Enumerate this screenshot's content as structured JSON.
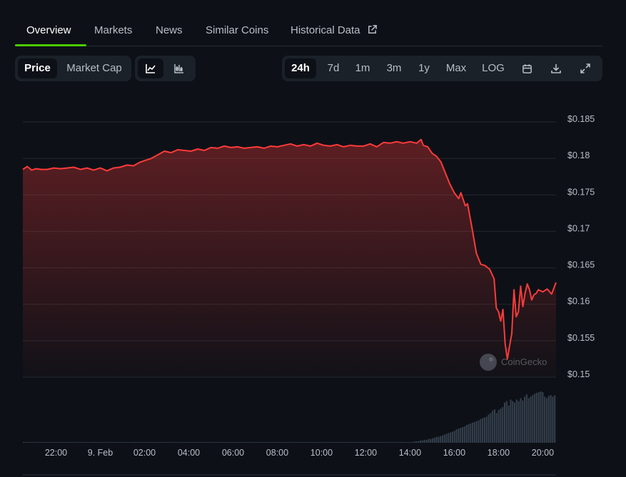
{
  "tabs": [
    {
      "label": "Overview",
      "active": true
    },
    {
      "label": "Markets"
    },
    {
      "label": "News"
    },
    {
      "label": "Similar Coins"
    },
    {
      "label": "Historical Data",
      "icon": "external-link-icon"
    }
  ],
  "metric_toggle": [
    {
      "label": "Price",
      "active": true
    },
    {
      "label": "Market Cap"
    }
  ],
  "chart_type_toggle": [
    {
      "icon": "line-chart-icon",
      "active": true
    },
    {
      "icon": "candlestick-chart-icon"
    }
  ],
  "range_toggle": [
    {
      "label": "24h",
      "active": true
    },
    {
      "label": "7d"
    },
    {
      "label": "1m"
    },
    {
      "label": "3m"
    },
    {
      "label": "1y"
    },
    {
      "label": "Max"
    },
    {
      "label": "LOG"
    }
  ],
  "tool_icons": [
    "calendar-icon",
    "download-icon",
    "expand-icon"
  ],
  "watermark": "CoinGecko",
  "colors": {
    "background": "#0d1117",
    "line": "#ff3a3a",
    "volume": "#35404d",
    "active_tab": "#4bcc00"
  },
  "chart_data": {
    "type": "line",
    "title": "",
    "xlabel": "",
    "ylabel": "",
    "ylim": [
      0.15,
      0.185
    ],
    "y_ticks": [
      "$0.185",
      "$0.18",
      "$0.175",
      "$0.17",
      "$0.165",
      "$0.16",
      "$0.155",
      "$0.15"
    ],
    "x_ticks": [
      "22:00",
      "9. Feb",
      "02:00",
      "04:00",
      "06:00",
      "08:00",
      "10:00",
      "12:00",
      "14:00",
      "16:00",
      "18:00",
      "20:00"
    ],
    "x_tick_hours": [
      22,
      24,
      26,
      28,
      30,
      32,
      34,
      36,
      38,
      40,
      42,
      44
    ],
    "x_range_hours": [
      20.5,
      44.6
    ],
    "series": [
      {
        "x_hours": [
          20.5,
          20.7,
          20.9,
          21.1,
          21.3,
          21.6,
          21.9,
          22.2,
          22.5,
          22.8,
          23.1,
          23.4,
          23.7,
          24.0,
          24.3,
          24.6,
          24.9,
          25.2,
          25.5,
          25.8,
          26.0,
          26.3,
          26.6,
          26.9,
          27.2,
          27.5,
          27.8,
          28.1,
          28.4,
          28.7,
          29.0,
          29.3,
          29.6,
          29.9,
          30.2,
          30.5,
          30.8,
          31.1,
          31.4,
          31.7,
          32.0,
          32.3,
          32.6,
          32.9,
          33.2,
          33.5,
          33.8,
          34.1,
          34.4,
          34.7,
          35.0,
          35.3,
          35.6,
          35.9,
          36.2,
          36.5,
          36.8,
          37.1,
          37.4,
          37.7,
          38.0,
          38.3,
          38.5,
          38.6,
          38.8,
          39.0,
          39.2,
          39.4,
          39.6,
          39.8,
          40.0,
          40.2,
          40.3,
          40.5,
          40.6,
          40.8,
          41.0,
          41.2,
          41.4,
          41.6,
          41.8,
          41.9,
          42.0,
          42.1,
          42.2,
          42.3,
          42.4,
          42.5,
          42.6,
          42.7,
          42.8,
          42.9,
          43.0,
          43.1,
          43.2,
          43.3,
          43.4,
          43.5,
          43.6,
          43.7,
          43.8,
          44.0,
          44.2,
          44.4,
          44.6
        ],
        "values": [
          0.178,
          0.1784,
          0.1779,
          0.1781,
          0.178,
          0.178,
          0.1782,
          0.1781,
          0.1782,
          0.1783,
          0.178,
          0.1782,
          0.1779,
          0.1782,
          0.1778,
          0.1782,
          0.1783,
          0.1786,
          0.1785,
          0.179,
          0.1792,
          0.1795,
          0.18,
          0.1805,
          0.1803,
          0.1807,
          0.1806,
          0.1805,
          0.1808,
          0.1806,
          0.181,
          0.1809,
          0.1812,
          0.181,
          0.1811,
          0.1809,
          0.181,
          0.1811,
          0.1809,
          0.1812,
          0.1811,
          0.1813,
          0.1815,
          0.1812,
          0.1814,
          0.1812,
          0.1816,
          0.1813,
          0.1812,
          0.1814,
          0.1811,
          0.1813,
          0.1812,
          0.1812,
          0.1815,
          0.1811,
          0.1817,
          0.1816,
          0.1818,
          0.1816,
          0.1818,
          0.1816,
          0.1821,
          0.1813,
          0.1811,
          0.1802,
          0.1798,
          0.179,
          0.1775,
          0.176,
          0.1748,
          0.174,
          0.1748,
          0.173,
          0.1733,
          0.17,
          0.1665,
          0.165,
          0.1648,
          0.1643,
          0.163,
          0.159,
          0.1585,
          0.1572,
          0.1588,
          0.1541,
          0.152,
          0.1538,
          0.1555,
          0.1615,
          0.1578,
          0.1585,
          0.162,
          0.1592,
          0.161,
          0.1623,
          0.1615,
          0.1601,
          0.1608,
          0.161,
          0.1615,
          0.1612,
          0.1616,
          0.1609,
          0.1625
        ]
      }
    ],
    "volume": [
      1,
      1,
      1,
      1,
      1,
      1,
      1,
      1,
      1,
      1,
      1,
      1,
      1,
      1,
      1,
      1,
      1,
      1,
      1,
      1,
      1,
      1,
      1,
      1,
      1,
      1,
      1,
      1,
      1,
      1,
      1,
      1,
      1,
      1,
      1,
      1,
      1,
      1,
      1,
      1,
      1,
      1,
      1,
      1,
      1,
      1,
      1,
      1,
      1,
      1,
      1,
      1,
      1,
      1,
      1,
      1,
      1,
      1,
      1,
      1,
      1,
      1,
      1,
      1,
      1,
      1,
      1,
      1,
      1,
      1,
      1,
      1,
      1,
      1,
      1,
      1,
      1,
      1,
      1,
      1,
      1,
      1,
      1,
      1,
      1,
      1,
      1,
      1,
      1,
      1,
      1,
      1,
      1,
      1,
      1,
      1,
      1,
      1,
      1,
      1,
      1,
      1,
      1,
      1,
      1,
      1,
      1,
      1,
      1,
      1,
      1,
      1,
      1,
      1,
      1,
      1,
      1,
      1,
      1,
      1,
      1,
      1,
      1,
      1,
      1,
      1,
      1,
      1,
      1,
      1,
      1,
      1,
      1,
      1,
      1,
      1,
      1,
      1,
      1,
      1,
      1,
      1,
      1,
      1,
      1,
      1,
      1,
      1,
      1,
      1,
      1,
      1,
      1,
      1,
      1,
      1,
      1,
      1,
      1,
      1,
      1,
      1,
      1,
      1,
      1,
      1,
      1,
      1,
      1,
      1,
      1,
      1,
      1,
      1,
      1,
      1,
      1,
      1,
      1,
      1,
      1,
      1,
      1,
      1,
      1,
      1,
      1,
      1,
      1,
      1,
      1,
      1,
      1,
      1,
      1,
      2,
      2,
      2,
      3,
      3,
      4,
      4,
      5,
      5,
      6,
      7,
      8,
      8,
      9,
      10,
      11,
      12,
      13,
      14,
      15,
      16,
      18,
      19,
      20,
      21,
      22,
      24,
      25,
      26,
      27,
      28,
      29,
      30,
      32,
      33,
      34,
      35,
      38,
      40,
      43,
      45,
      40,
      44,
      46,
      48,
      54,
      56,
      50,
      58,
      56,
      54,
      58,
      56,
      60,
      57,
      62,
      65,
      60,
      62,
      64,
      66,
      67,
      68,
      69,
      68,
      62,
      60,
      63,
      64,
      62,
      64
    ]
  }
}
